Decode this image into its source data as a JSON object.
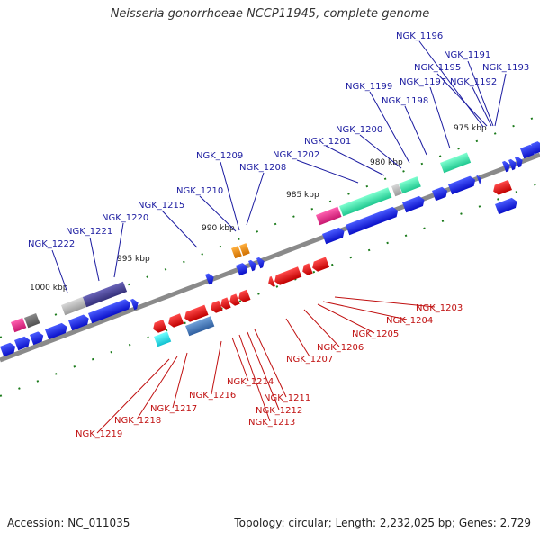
{
  "title": "Neisseria gonorrhoeae NCCP11945, complete genome",
  "footer": {
    "accession": "Accession: NC_011035",
    "summary": "Topology: circular; Length: 2,232,025 bp; Genes: 2,729"
  },
  "kbp_labels": [
    "1000 kbp",
    "995 kbp",
    "990 kbp",
    "985 kbp",
    "980 kbp",
    "975 kbp"
  ],
  "upper_labels": [
    "NGK_1222",
    "NGK_1221",
    "NGK_1220",
    "NGK_1215",
    "NGK_1210",
    "NGK_1209",
    "NGK_1208",
    "NGK_1202",
    "NGK_1201",
    "NGK_1200",
    "NGK_1199",
    "NGK_1198",
    "NGK_1197",
    "NGK_1196",
    "NGK_1195",
    "NGK_1192",
    "NGK_1191",
    "NGK_1193"
  ],
  "lower_labels": [
    "NGK_1203",
    "NGK_1204",
    "NGK_1205",
    "NGK_1206",
    "NGK_1207",
    "NGK_1211",
    "NGK_1212",
    "NGK_1213",
    "NGK_1214",
    "NGK_1216",
    "NGK_1217",
    "NGK_1218",
    "NGK_1219"
  ],
  "colors": {
    "forward_gene": "#1010e0",
    "reverse_gene": "#e01010",
    "backbone": "#888888",
    "ticks": "#1a7a1a",
    "upper_label": "#1a1aa0",
    "lower_label": "#c01010"
  }
}
